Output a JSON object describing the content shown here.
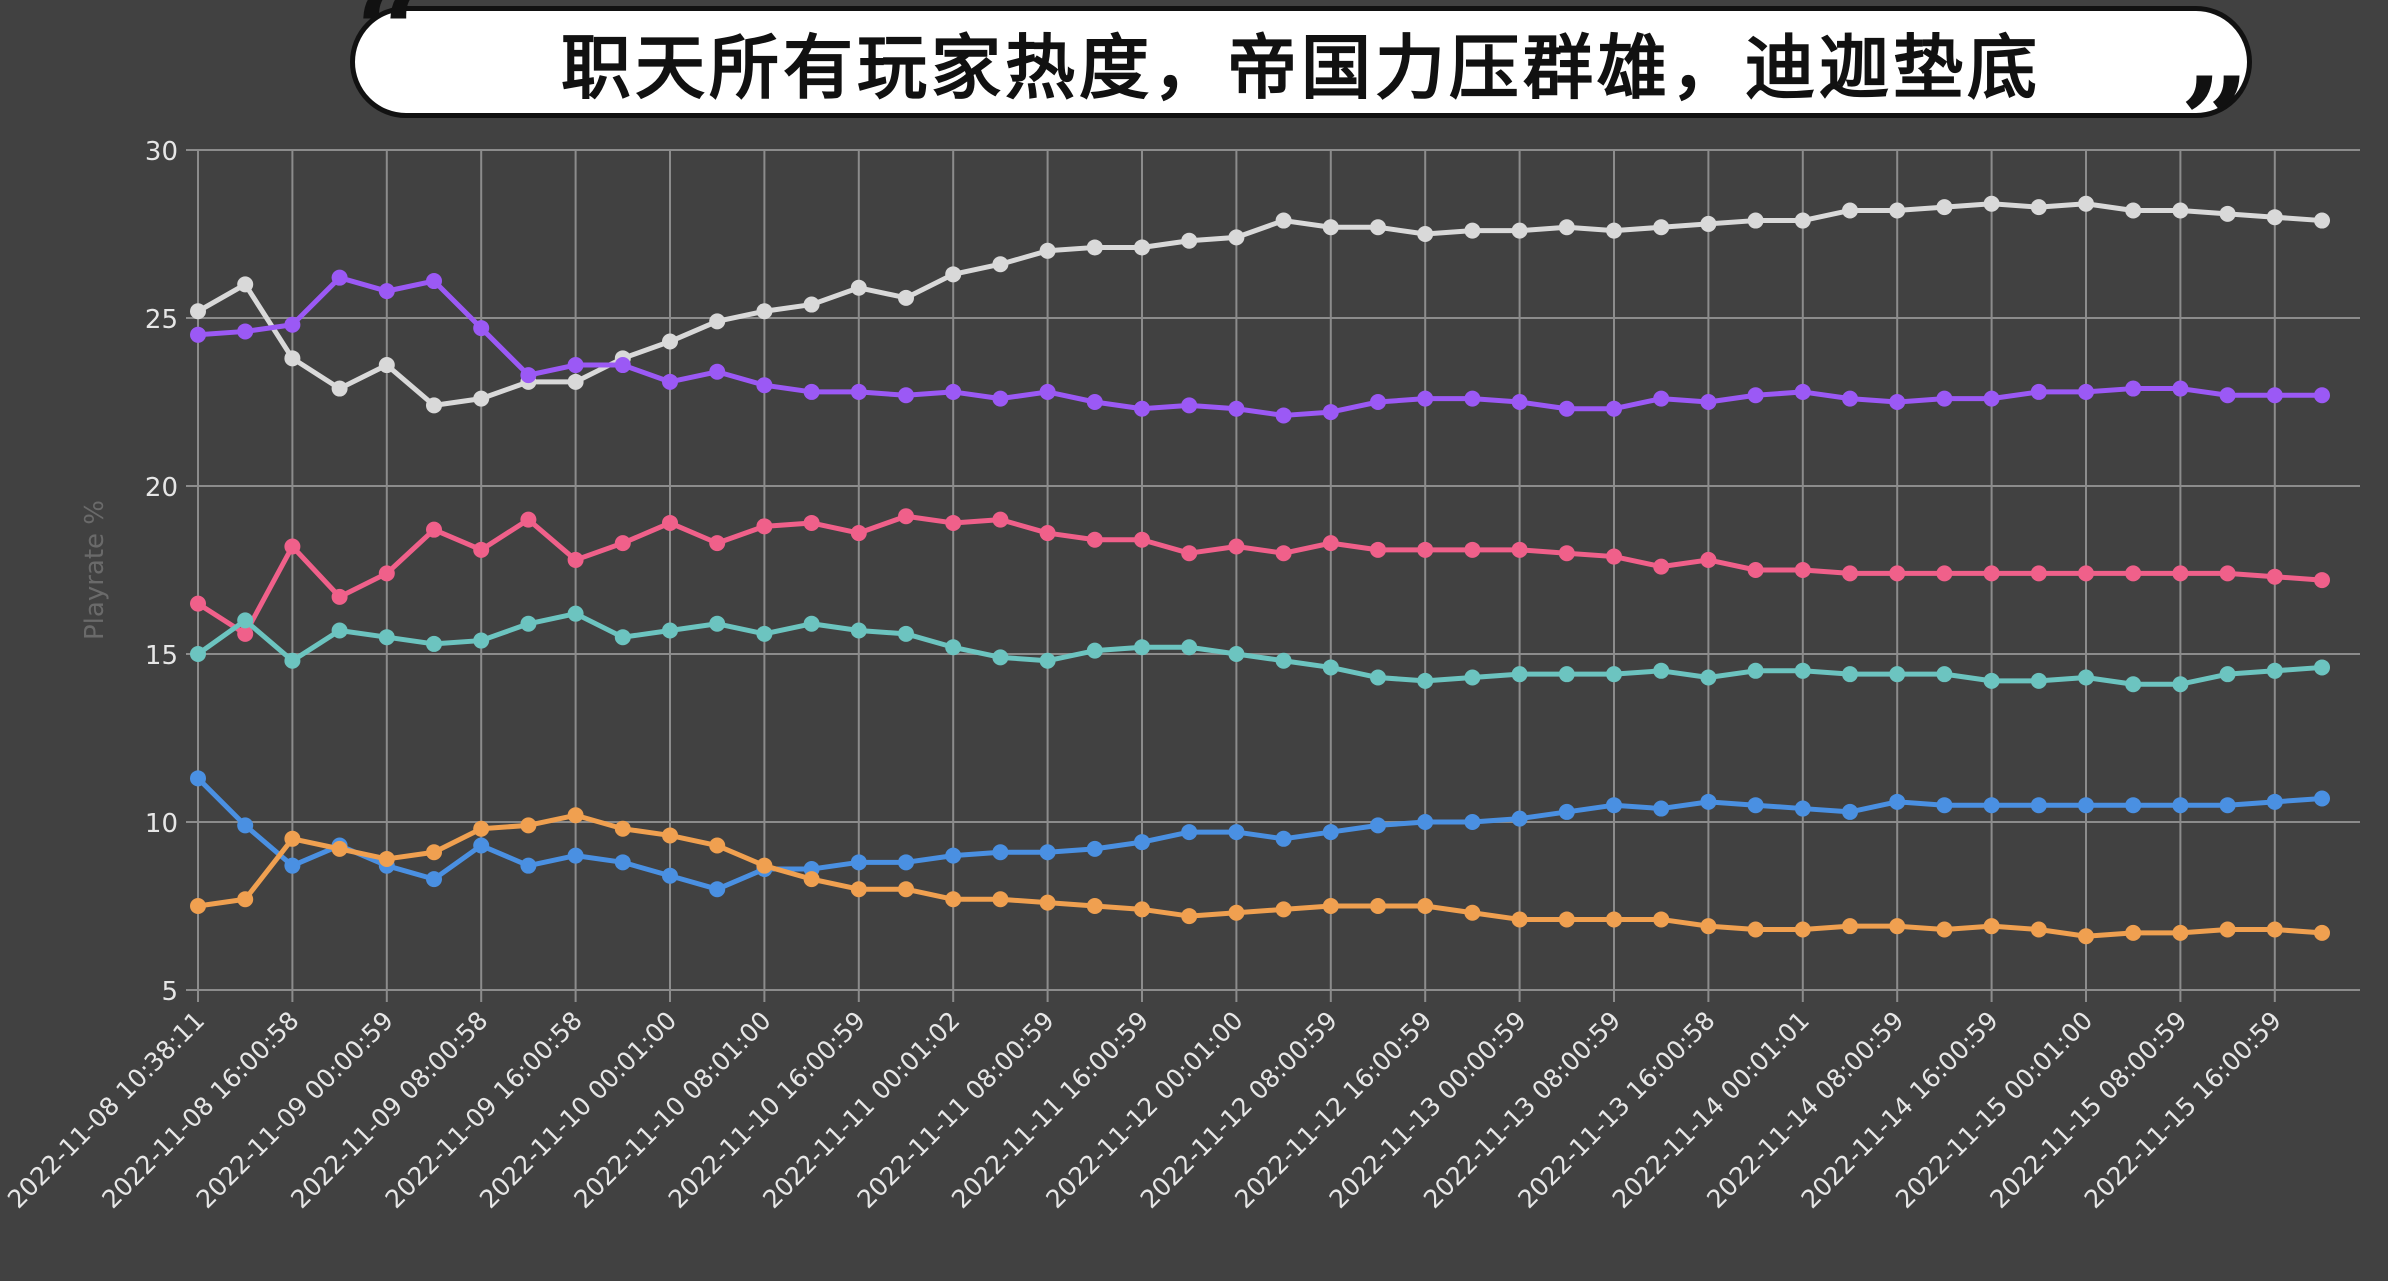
{
  "header": {
    "title": "职天所有玩家热度，帝国力压群雄，迪迦垫底",
    "open_quote": "“",
    "close_quote": "”"
  },
  "chart_data": {
    "type": "line",
    "title": "职天所有玩家热度，帝国力压群雄，迪迦垫底",
    "ylabel": "Playrate %",
    "xlabel": "",
    "ylim": [
      5,
      30
    ],
    "yticks": [
      5,
      10,
      15,
      20,
      25,
      30
    ],
    "grid": true,
    "x_tick_labels": [
      "2022-11-08 10:38:11",
      "2022-11-08 16:00:58",
      "2022-11-09 00:00:59",
      "2022-11-09 08:00:58",
      "2022-11-09 16:00:58",
      "2022-11-10 00:01:00",
      "2022-11-10 08:01:00",
      "2022-11-10 16:00:59",
      "2022-11-11 00:01:02",
      "2022-11-11 08:00:59",
      "2022-11-11 16:00:59",
      "2022-11-12 00:01:00",
      "2022-11-12 08:00:59",
      "2022-11-12 16:00:59",
      "2022-11-13 00:00:59",
      "2022-11-13 08:00:59",
      "2022-11-13 16:00:58",
      "2022-11-14 00:01:01",
      "2022-11-14 08:00:59",
      "2022-11-14 16:00:59",
      "2022-11-15 00:01:00",
      "2022-11-15 08:00:59",
      "2022-11-15 16:00:59"
    ],
    "series": [
      {
        "color": "#d9d9d9",
        "values": [
          25.2,
          26.0,
          23.8,
          22.9,
          23.6,
          22.4,
          22.6,
          23.1,
          23.1,
          23.8,
          24.3,
          24.9,
          25.2,
          25.4,
          25.9,
          25.6,
          26.3,
          26.6,
          27.0,
          27.1,
          27.1,
          27.3,
          27.4,
          27.9,
          27.7,
          27.7,
          27.5,
          27.6,
          27.6,
          27.7,
          27.6,
          27.7,
          27.8,
          27.9,
          27.9,
          28.2,
          28.2,
          28.3,
          28.4,
          28.3,
          28.4,
          28.2,
          28.2,
          28.1,
          28.0,
          27.9
        ]
      },
      {
        "color": "#9b59f5",
        "values": [
          24.5,
          24.6,
          24.8,
          26.2,
          25.8,
          26.1,
          24.7,
          23.3,
          23.6,
          23.6,
          23.1,
          23.4,
          23.0,
          22.8,
          22.8,
          22.7,
          22.8,
          22.6,
          22.8,
          22.5,
          22.3,
          22.4,
          22.3,
          22.1,
          22.2,
          22.5,
          22.6,
          22.6,
          22.5,
          22.3,
          22.3,
          22.6,
          22.5,
          22.7,
          22.8,
          22.6,
          22.5,
          22.6,
          22.6,
          22.8,
          22.8,
          22.9,
          22.9,
          22.7,
          22.7,
          22.7
        ]
      },
      {
        "color": "#f0608a",
        "values": [
          16.5,
          15.6,
          18.2,
          16.7,
          17.4,
          18.7,
          18.1,
          19.0,
          17.8,
          18.3,
          18.9,
          18.3,
          18.8,
          18.9,
          18.6,
          19.1,
          18.9,
          19.0,
          18.6,
          18.4,
          18.4,
          18.0,
          18.2,
          18.0,
          18.3,
          18.1,
          18.1,
          18.1,
          18.1,
          18.0,
          17.9,
          17.6,
          17.8,
          17.5,
          17.5,
          17.4,
          17.4,
          17.4,
          17.4,
          17.4,
          17.4,
          17.4,
          17.4,
          17.4,
          17.3,
          17.2
        ]
      },
      {
        "color": "#6cc4c0",
        "values": [
          15.0,
          16.0,
          14.8,
          15.7,
          15.5,
          15.3,
          15.4,
          15.9,
          16.2,
          15.5,
          15.7,
          15.9,
          15.6,
          15.9,
          15.7,
          15.6,
          15.2,
          14.9,
          14.8,
          15.1,
          15.2,
          15.2,
          15.0,
          14.8,
          14.6,
          14.3,
          14.2,
          14.3,
          14.4,
          14.4,
          14.4,
          14.5,
          14.3,
          14.5,
          14.5,
          14.4,
          14.4,
          14.4,
          14.2,
          14.2,
          14.3,
          14.1,
          14.1,
          14.4,
          14.5,
          14.6
        ]
      },
      {
        "color": "#4a90e2",
        "values": [
          11.3,
          9.9,
          8.7,
          9.3,
          8.7,
          8.3,
          9.3,
          8.7,
          9.0,
          8.8,
          8.4,
          8.0,
          8.6,
          8.6,
          8.8,
          8.8,
          9.0,
          9.1,
          9.1,
          9.2,
          9.4,
          9.7,
          9.7,
          9.5,
          9.7,
          9.9,
          10.0,
          10.0,
          10.1,
          10.3,
          10.5,
          10.4,
          10.6,
          10.5,
          10.4,
          10.3,
          10.6,
          10.5,
          10.5,
          10.5,
          10.5,
          10.5,
          10.5,
          10.5,
          10.6,
          10.7
        ]
      },
      {
        "color": "#f0a050",
        "values": [
          7.5,
          7.7,
          9.5,
          9.2,
          8.9,
          9.1,
          9.8,
          9.9,
          10.2,
          9.8,
          9.6,
          9.3,
          8.7,
          8.3,
          8.0,
          8.0,
          7.7,
          7.7,
          7.6,
          7.5,
          7.4,
          7.2,
          7.3,
          7.4,
          7.5,
          7.5,
          7.5,
          7.3,
          7.1,
          7.1,
          7.1,
          7.1,
          6.9,
          6.8,
          6.8,
          6.9,
          6.9,
          6.8,
          6.9,
          6.8,
          6.6,
          6.7,
          6.7,
          6.8,
          6.8,
          6.7
        ]
      }
    ]
  }
}
